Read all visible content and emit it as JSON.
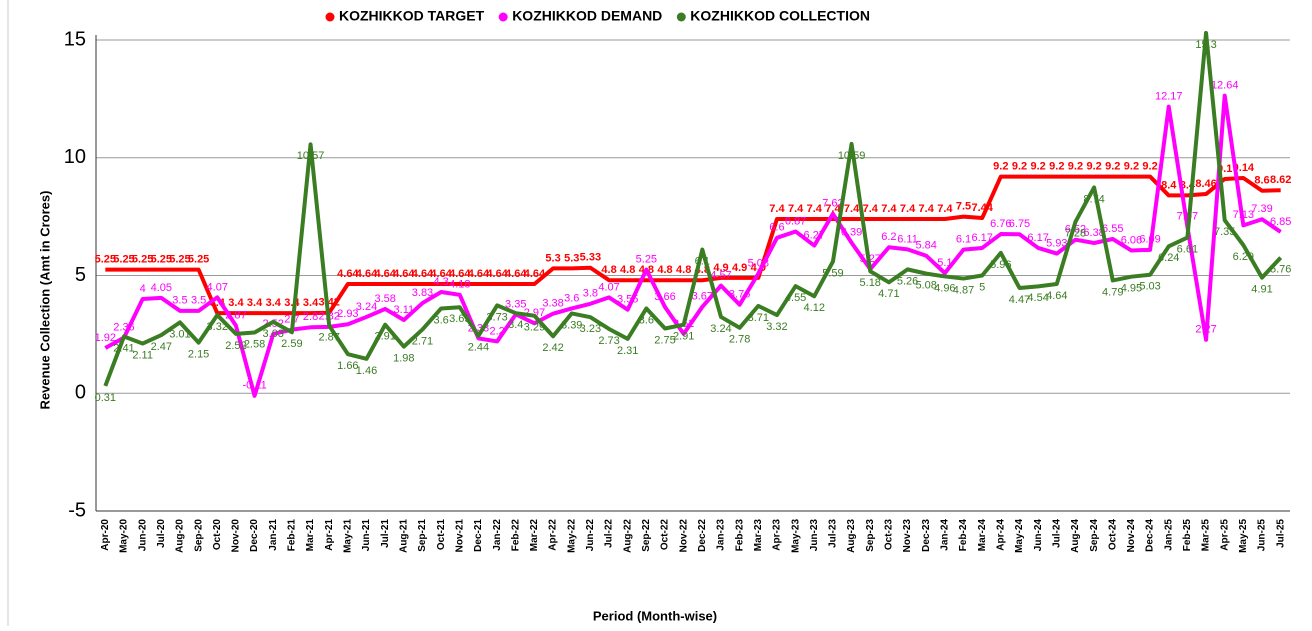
{
  "chart_data": {
    "type": "line",
    "y_label": "Revenue Collection (Amt in Crores)",
    "x_label": "Period (Month-wise)",
    "categories": [
      "Apr-20",
      "May-20",
      "Jun-20",
      "Jul-20",
      "Aug-20",
      "Sep-20",
      "Oct-20",
      "Nov-20",
      "Dec-20",
      "Jan-21",
      "Feb-21",
      "Mar-21",
      "Apr-21",
      "May-21",
      "Jun-21",
      "Jul-21",
      "Aug-21",
      "Sep-21",
      "Oct-21",
      "Nov-21",
      "Dec-21",
      "Jan-22",
      "Feb-22",
      "Mar-22",
      "Apr-22",
      "May-22",
      "Jun-22",
      "Jul-22",
      "Aug-22",
      "Sep-22",
      "Oct-22",
      "Nov-22",
      "Dec-22",
      "Jan-23",
      "Feb-23",
      "Mar-23",
      "Apr-23",
      "May-23",
      "Jun-23",
      "Jul-23",
      "Aug-23",
      "Sep-23",
      "Oct-23",
      "Nov-23",
      "Dec-23",
      "Jan-24",
      "Feb-24",
      "Mar-24",
      "Apr-24",
      "May-24",
      "Jun-24",
      "Jul-24",
      "Aug-24",
      "Sep-24",
      "Oct-24",
      "Nov-24",
      "Dec-24",
      "Jan-25",
      "Feb-25",
      "Mar-25",
      "Apr-25",
      "May-25",
      "Jun-25",
      "Jul-25"
    ],
    "series": [
      {
        "name": "KOZHIKKOD TARGET",
        "color": "#ff0000",
        "values": [
          5.25,
          5.25,
          5.25,
          5.25,
          5.25,
          5.25,
          3.4,
          3.4,
          3.4,
          3.4,
          3.4,
          3.4,
          3.42,
          4.64,
          4.64,
          4.64,
          4.64,
          4.64,
          4.64,
          4.64,
          4.64,
          4.64,
          4.64,
          4.64,
          5.3,
          5.3,
          5.33,
          4.8,
          4.8,
          4.8,
          4.8,
          4.8,
          4.8,
          4.9,
          4.9,
          4.9,
          7.4,
          7.4,
          7.4,
          7.4,
          7.4,
          7.4,
          7.4,
          7.4,
          7.4,
          7.4,
          7.5,
          7.44,
          9.2,
          9.2,
          9.2,
          9.2,
          9.2,
          9.2,
          9.2,
          9.2,
          9.2,
          8.4,
          8.4,
          8.46,
          9.1,
          9.14,
          8.6,
          8.62
        ]
      },
      {
        "name": "KOZHIKKOD DEMAND",
        "color": "#ff00ff",
        "values": [
          1.92,
          2.36,
          4.0,
          4.05,
          3.5,
          3.5,
          4.07,
          2.87,
          -0.11,
          2.52,
          2.7,
          2.8,
          2.82,
          2.93,
          3.24,
          3.58,
          3.11,
          3.83,
          4.3,
          4.18,
          2.33,
          2.2,
          3.35,
          2.97,
          3.38,
          3.6,
          3.8,
          4.07,
          3.55,
          5.25,
          3.66,
          2.52,
          3.67,
          4.57,
          3.76,
          5.08,
          6.6,
          6.87,
          6.27,
          7.62,
          6.39,
          5.27,
          6.2,
          6.11,
          5.84,
          5.1,
          6.1,
          6.17,
          6.76,
          6.75,
          6.17,
          5.93,
          6.52,
          6.38,
          6.55,
          6.06,
          6.09,
          12.17,
          7.07,
          2.27,
          12.64,
          7.13,
          7.39,
          6.85
        ]
      },
      {
        "name": "KOZHIKKOD COLLECTION",
        "color": "#3a7d22",
        "values": [
          0.31,
          2.41,
          2.11,
          2.47,
          3.01,
          2.15,
          3.32,
          2.52,
          2.58,
          3.03,
          2.59,
          10.57,
          2.87,
          1.66,
          1.46,
          2.91,
          1.98,
          2.71,
          3.6,
          3.65,
          2.44,
          3.73,
          3.4,
          3.29,
          2.42,
          3.39,
          3.23,
          2.73,
          2.31,
          3.6,
          2.75,
          2.91,
          6.1,
          3.24,
          2.78,
          3.71,
          3.32,
          4.55,
          4.12,
          5.59,
          10.59,
          5.18,
          4.71,
          5.26,
          5.08,
          4.96,
          4.87,
          5,
          5.96,
          4.47,
          4.54,
          4.64,
          7.28,
          8.74,
          4.79,
          4.95,
          5.03,
          6.24,
          6.61,
          15.3,
          7.35,
          6.29,
          4.91,
          5.76
        ]
      }
    ],
    "ylim": [
      -5,
      15
    ],
    "yticks": [
      -5,
      0,
      5,
      10,
      15
    ],
    "grid": true,
    "legend": "top"
  }
}
